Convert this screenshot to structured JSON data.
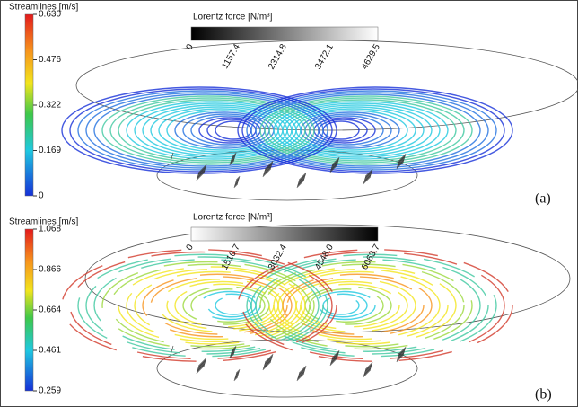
{
  "panels": [
    {
      "label": "(a)",
      "streamlines": {
        "title": "Streamlines [m/s]",
        "ticks": [
          "0.630",
          "0.476",
          "0.322",
          "0.169",
          "0"
        ]
      },
      "lorentz": {
        "title": "Lorentz force [N/m³]",
        "ticks": [
          "0",
          "1157.4",
          "2314.8",
          "3472.1",
          "4629.5"
        ]
      }
    },
    {
      "label": "(b)",
      "streamlines": {
        "title": "Streamlines [m/s]",
        "ticks": [
          "1.068",
          "0.866",
          "0.664",
          "0.461",
          "0.259"
        ]
      },
      "lorentz": {
        "title": "Lorentz force [N/m³]",
        "ticks": [
          "0",
          "1516.7",
          "3032.4",
          "4548.0",
          "6063.7"
        ]
      }
    }
  ]
}
